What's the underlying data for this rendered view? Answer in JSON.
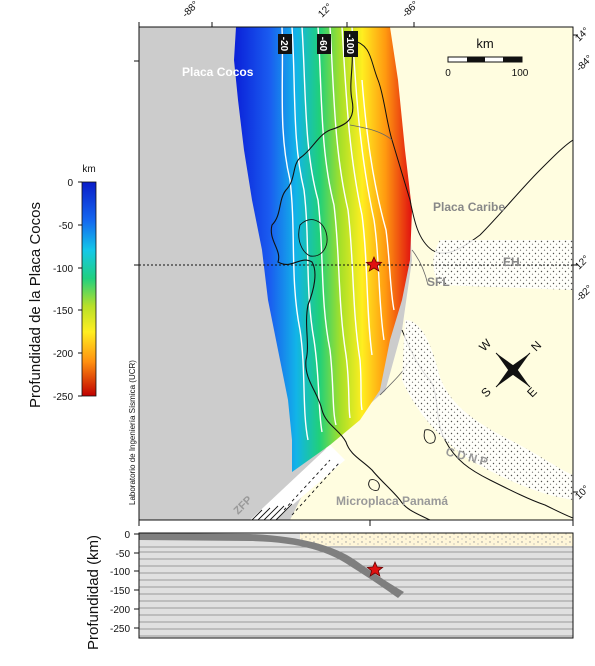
{
  "map": {
    "tick_labels": {
      "top": [
        "-88°",
        "12°",
        "-86°"
      ],
      "right": [
        "14°",
        "-84°",
        "12°",
        "-82°",
        "10°"
      ]
    },
    "contour_labels": [
      "-20",
      "-60",
      "-100"
    ],
    "scalebar": {
      "unit": "km",
      "min": "0",
      "max": "100"
    },
    "labels": {
      "cocos": "Placa Cocos",
      "caribe": "Placa Caribe",
      "panama": "Microplaca Panamá",
      "eh": "EH",
      "sfl": "SFL",
      "zfp": "ZFP",
      "cdnp": "CDNP"
    },
    "compass": {
      "n": "N",
      "s": "S",
      "e": "E",
      "w": "W"
    },
    "credit": "Laboratorio de Ingeniería Sísmica (UCR)",
    "colors": {
      "ocean": "#cccccc",
      "land": "#fffde0",
      "marker": "#e01010"
    }
  },
  "colorbar": {
    "title": "Profundidad de la Placa Cocos",
    "unit": "km",
    "ticks": [
      "0",
      "-50",
      "-100",
      "-150",
      "-200",
      "-250"
    ]
  },
  "profile": {
    "ylabel": "Profundidad (km)",
    "ticks": [
      "0",
      "-50",
      "-100",
      "-150",
      "-200",
      "-250"
    ]
  }
}
